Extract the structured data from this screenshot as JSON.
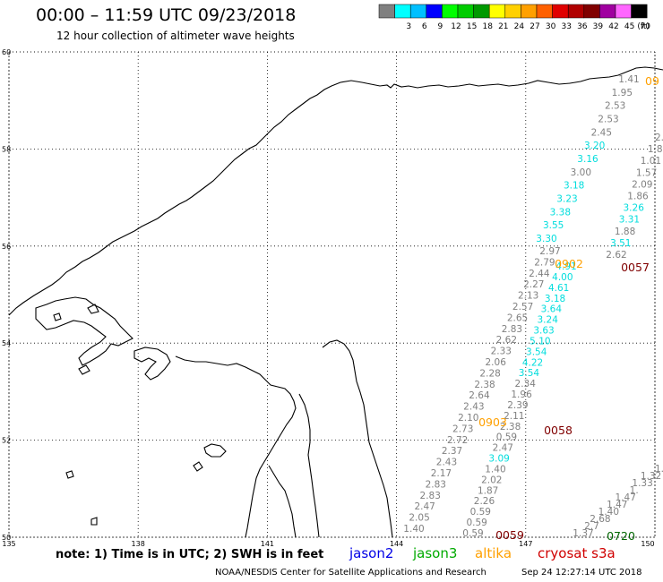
{
  "header": {
    "title": "00:00 – 11:59 UTC 09/23/2018",
    "subtitle": "12 hour collection of altimeter wave heights"
  },
  "scale": {
    "unit_label": "(ft)",
    "bins": [
      {
        "label": "",
        "color": "#808080"
      },
      {
        "label": "3",
        "color": "#00ffff"
      },
      {
        "label": "6",
        "color": "#00c0ff"
      },
      {
        "label": "9",
        "color": "#0000ff"
      },
      {
        "label": "12",
        "color": "#00ff00"
      },
      {
        "label": "15",
        "color": "#00cc00"
      },
      {
        "label": "18",
        "color": "#009900"
      },
      {
        "label": "21",
        "color": "#ffff00"
      },
      {
        "label": "24",
        "color": "#ffd000"
      },
      {
        "label": "27",
        "color": "#ffa000"
      },
      {
        "label": "30",
        "color": "#ff6000"
      },
      {
        "label": "33",
        "color": "#e00000"
      },
      {
        "label": "36",
        "color": "#b00000"
      },
      {
        "label": "39",
        "color": "#800000"
      },
      {
        "label": "42",
        "color": "#a000a0"
      },
      {
        "label": "45",
        "color": "#ff66ff"
      },
      {
        "label": "70",
        "color": "#000000"
      }
    ]
  },
  "map": {
    "lat_labels": [
      "60",
      "58",
      "56",
      "54",
      "52",
      "50"
    ],
    "lon_labels": [
      "135",
      "138",
      "141",
      "144",
      "147",
      "150"
    ],
    "lat_range": [
      50,
      60
    ],
    "lon_range": [
      135,
      150
    ],
    "track_colors": {
      "gray": "#808080",
      "cyan": "#00dddd",
      "orange": "#ffa000",
      "darkred": "#800000",
      "green": "#006600"
    },
    "times": [
      {
        "text": "0902",
        "color": "orange"
      },
      {
        "text": "0057",
        "color": "darkred"
      },
      {
        "text": "0903",
        "color": "orange"
      },
      {
        "text": "0058",
        "color": "darkred"
      },
      {
        "text": "0059",
        "color": "darkred"
      },
      {
        "text": "0720",
        "color": "green"
      },
      {
        "text": "09",
        "color": "orange"
      }
    ],
    "tracks": [
      {
        "name": "track-a",
        "points": [
          {
            "v": "2.97",
            "c": "gray"
          },
          {
            "v": "2.79",
            "c": "gray"
          },
          {
            "v": "2.44",
            "c": "gray"
          },
          {
            "v": "2.27",
            "c": "gray"
          },
          {
            "v": "2.13",
            "c": "gray"
          },
          {
            "v": "2.57",
            "c": "gray"
          },
          {
            "v": "2.65",
            "c": "gray"
          },
          {
            "v": "2.83",
            "c": "gray"
          },
          {
            "v": "2.62",
            "c": "gray"
          },
          {
            "v": "2.33",
            "c": "gray"
          },
          {
            "v": "2.06",
            "c": "gray"
          },
          {
            "v": "2.28",
            "c": "gray"
          },
          {
            "v": "2.38",
            "c": "gray"
          },
          {
            "v": "2.64",
            "c": "gray"
          },
          {
            "v": "2.43",
            "c": "gray"
          },
          {
            "v": "2.10",
            "c": "gray"
          },
          {
            "v": "2.73",
            "c": "gray"
          },
          {
            "v": "2.72",
            "c": "gray"
          },
          {
            "v": "2.37",
            "c": "gray"
          },
          {
            "v": "2.43",
            "c": "gray"
          },
          {
            "v": "2.17",
            "c": "gray"
          },
          {
            "v": "2.83",
            "c": "gray"
          },
          {
            "v": "2.83",
            "c": "gray"
          },
          {
            "v": "2.47",
            "c": "gray"
          },
          {
            "v": "2.05",
            "c": "gray"
          },
          {
            "v": "1.40",
            "c": "gray"
          }
        ]
      },
      {
        "name": "track-b",
        "points": [
          {
            "v": "1.41",
            "c": "gray"
          },
          {
            "v": "1.95",
            "c": "gray"
          },
          {
            "v": "2.53",
            "c": "gray"
          },
          {
            "v": "2.53",
            "c": "gray"
          },
          {
            "v": "2.45",
            "c": "gray"
          },
          {
            "v": "3.20",
            "c": "cyan"
          },
          {
            "v": "3.16",
            "c": "cyan"
          },
          {
            "v": "3.00",
            "c": "gray"
          },
          {
            "v": "3.18",
            "c": "cyan"
          },
          {
            "v": "3.23",
            "c": "cyan"
          },
          {
            "v": "3.38",
            "c": "cyan"
          },
          {
            "v": "3.55",
            "c": "cyan"
          },
          {
            "v": "3.30",
            "c": "cyan"
          }
        ]
      },
      {
        "name": "track-c",
        "points": [
          {
            "v": "4.91",
            "c": "cyan"
          },
          {
            "v": "4.00",
            "c": "cyan"
          },
          {
            "v": "4.61",
            "c": "cyan"
          },
          {
            "v": "3.18",
            "c": "cyan"
          },
          {
            "v": "3.64",
            "c": "cyan"
          },
          {
            "v": "3.24",
            "c": "cyan"
          },
          {
            "v": "3.63",
            "c": "cyan"
          },
          {
            "v": "5.10",
            "c": "cyan"
          },
          {
            "v": "3.54",
            "c": "cyan"
          },
          {
            "v": "4.22",
            "c": "cyan"
          },
          {
            "v": "3.54",
            "c": "cyan"
          },
          {
            "v": "2.34",
            "c": "gray"
          },
          {
            "v": "1.96",
            "c": "gray"
          },
          {
            "v": "2.39",
            "c": "gray"
          },
          {
            "v": "2.11",
            "c": "gray"
          },
          {
            "v": "2.38",
            "c": "gray"
          },
          {
            "v": "0.59",
            "c": "gray"
          },
          {
            "v": "2.47",
            "c": "gray"
          },
          {
            "v": "3.09",
            "c": "cyan"
          },
          {
            "v": "1.40",
            "c": "gray"
          },
          {
            "v": "2.02",
            "c": "gray"
          },
          {
            "v": "1.87",
            "c": "gray"
          },
          {
            "v": "2.26",
            "c": "gray"
          },
          {
            "v": "0.59",
            "c": "gray"
          },
          {
            "v": "0.59",
            "c": "gray"
          },
          {
            "v": "0.59",
            "c": "gray"
          }
        ]
      },
      {
        "name": "track-d",
        "points": [
          {
            "v": "2.",
            "c": "gray"
          },
          {
            "v": "1.8",
            "c": "gray"
          },
          {
            "v": "1.01",
            "c": "gray"
          },
          {
            "v": "1.57",
            "c": "gray"
          },
          {
            "v": "2.09",
            "c": "gray"
          },
          {
            "v": "1.86",
            "c": "gray"
          },
          {
            "v": "3.26",
            "c": "cyan"
          },
          {
            "v": "3.31",
            "c": "cyan"
          },
          {
            "v": "1.88",
            "c": "gray"
          },
          {
            "v": "3.51",
            "c": "cyan"
          },
          {
            "v": "2.62",
            "c": "gray"
          }
        ]
      },
      {
        "name": "track-e",
        "points": [
          {
            "v": "1.",
            "c": "gray"
          },
          {
            "v": "1.32",
            "c": "gray"
          },
          {
            "v": "1.33",
            "c": "gray"
          },
          {
            "v": "1.",
            "c": "gray"
          },
          {
            "v": "1.47",
            "c": "gray"
          },
          {
            "v": "1.47",
            "c": "gray"
          },
          {
            "v": "1.40",
            "c": "gray"
          },
          {
            "v": "2.68",
            "c": "gray"
          },
          {
            "v": "2.7",
            "c": "gray"
          },
          {
            "v": "1.37",
            "c": "gray"
          }
        ]
      }
    ]
  },
  "footer": {
    "note": "note:  1) Time is in UTC;  2) SWH is in feet",
    "satellites": [
      "jason2",
      "jason3",
      "altika",
      "cryosat s3a"
    ],
    "credit": "NOAA/NESDIS Center for Satellite Applications and Research",
    "timestamp": "Sep 24 12:27:14 UTC 2018"
  }
}
